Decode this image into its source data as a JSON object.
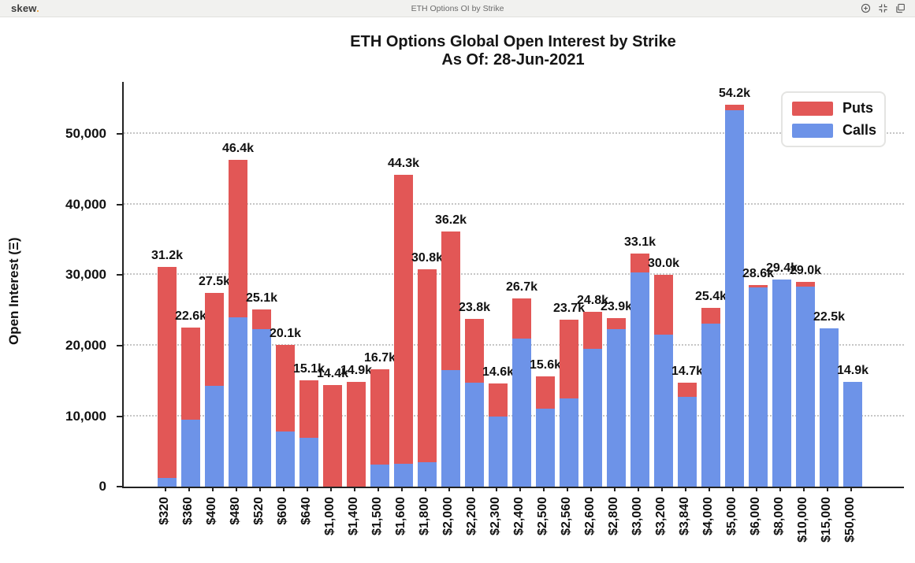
{
  "topbar": {
    "logo": "skew",
    "logo_dot": ".",
    "title": "ETH Options OI by Strike",
    "icons": [
      "zoom-in-icon",
      "fit-screen-icon",
      "copy-icon"
    ]
  },
  "chart": {
    "title_line1": "ETH Options Global Open Interest by Strike",
    "title_line2": "As Of: 28-Jun-2021",
    "ylabel": "Open Interest (Ξ)"
  },
  "legend": {
    "items": [
      {
        "label": "Puts",
        "color": "#e25756"
      },
      {
        "label": "Calls",
        "color": "#6d93e8"
      }
    ]
  },
  "chart_data": {
    "type": "bar",
    "stacked": true,
    "title": "ETH Options Global Open Interest by Strike As Of: 28-Jun-2021",
    "xlabel": "",
    "ylabel": "Open Interest (Ξ)",
    "ylim": [
      0,
      57650
    ],
    "yticks": [
      0,
      10000,
      20000,
      30000,
      40000,
      50000
    ],
    "ytick_labels": [
      "0",
      "10,000",
      "20,000",
      "30,000",
      "40,000",
      "50,000"
    ],
    "grid": "dotted-horizontal",
    "legend_position": "top-right",
    "categories": [
      "$320",
      "$360",
      "$400",
      "$480",
      "$520",
      "$600",
      "$640",
      "$1,000",
      "$1,400",
      "$1,500",
      "$1,600",
      "$1,800",
      "$2,000",
      "$2,200",
      "$2,300",
      "$2,400",
      "$2,500",
      "$2,560",
      "$2,600",
      "$2,800",
      "$3,000",
      "$3,200",
      "$3,840",
      "$4,000",
      "$5,000",
      "$6,000",
      "$8,000",
      "$10,000",
      "$15,000",
      "$50,000"
    ],
    "series": [
      {
        "name": "Calls",
        "color": "#6d93e8",
        "values": [
          1200,
          9500,
          14300,
          24000,
          22300,
          7800,
          6900,
          0,
          0,
          3100,
          3200,
          3500,
          16500,
          14700,
          10000,
          21000,
          11100,
          12500,
          19500,
          22400,
          30400,
          21600,
          12700,
          23100,
          53400,
          28300,
          29400,
          28400,
          22500,
          14900
        ]
      },
      {
        "name": "Puts",
        "color": "#e25756",
        "values": [
          30000,
          13100,
          13200,
          22400,
          2800,
          12300,
          8200,
          14400,
          14900,
          13600,
          41100,
          27300,
          19700,
          9100,
          4600,
          5700,
          4500,
          11200,
          5300,
          1500,
          2700,
          8400,
          2000,
          2300,
          800,
          300,
          0,
          600,
          0,
          0
        ]
      }
    ],
    "totals": [
      31200,
      22600,
      27500,
      46400,
      25100,
      20100,
      15100,
      14400,
      14900,
      16700,
      44300,
      30800,
      36200,
      23800,
      14600,
      26700,
      15600,
      23700,
      24800,
      23900,
      33100,
      30000,
      14700,
      25400,
      54200,
      28600,
      29400,
      29000,
      22500,
      14900
    ],
    "bar_labels": [
      "31.2k",
      "22.6k",
      "27.5k",
      "46.4k",
      "25.1k",
      "20.1k",
      "15.1k",
      "14.4k",
      "14.9k",
      "16.7k",
      "44.3k",
      "30.8k",
      "36.2k",
      "23.8k",
      "14.6k",
      "26.7k",
      "15.6k",
      "23.7k",
      "24.8k",
      "23.9k",
      "33.1k",
      "30.0k",
      "14.7k",
      "25.4k",
      "54.2k",
      "28.6k",
      "29.4k",
      "29.0k",
      "22.5k",
      "14.9k"
    ]
  }
}
